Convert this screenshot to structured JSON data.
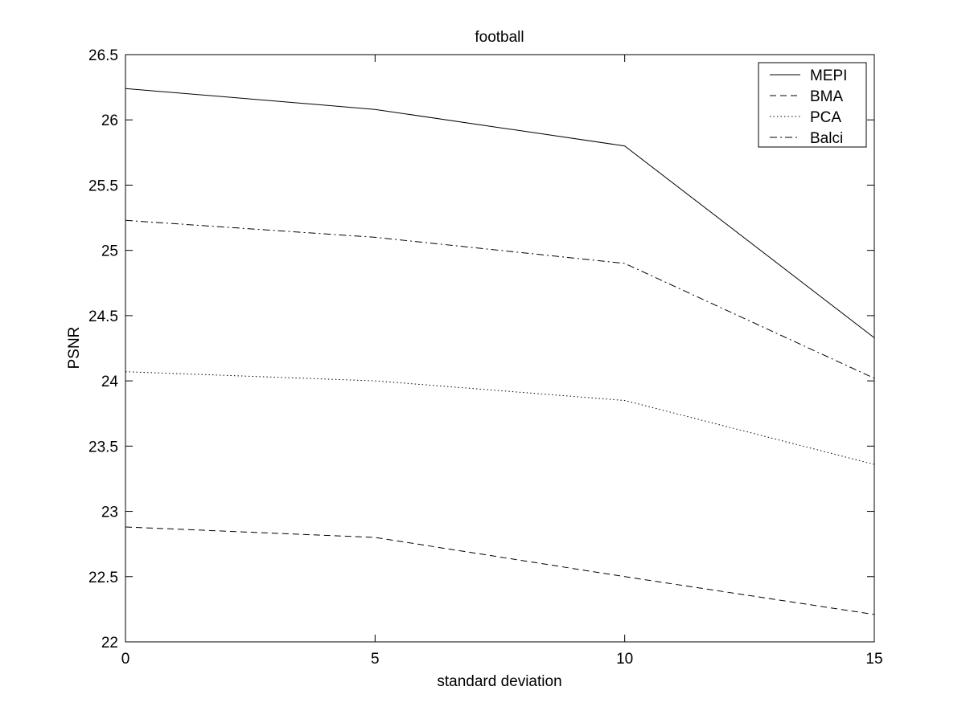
{
  "chart_data": {
    "type": "line",
    "title": "football",
    "xlabel": "standard deviation",
    "ylabel": "PSNR",
    "x": [
      0,
      5,
      10,
      15
    ],
    "xlim": [
      0,
      15
    ],
    "ylim": [
      22,
      26.5
    ],
    "xticks": [
      0,
      5,
      10,
      15
    ],
    "yticks": [
      22,
      22.5,
      23,
      23.5,
      24,
      24.5,
      25,
      25.5,
      26,
      26.5
    ],
    "grid": false,
    "legend_position": "top-right",
    "series": [
      {
        "name": "MEPI",
        "style": "solid",
        "color": "#000000",
        "values": [
          26.24,
          26.08,
          25.8,
          24.33
        ]
      },
      {
        "name": "BMA",
        "style": "dashed",
        "color": "#000000",
        "values": [
          22.88,
          22.8,
          22.5,
          22.21
        ]
      },
      {
        "name": "PCA",
        "style": "dotted",
        "color": "#000000",
        "values": [
          24.07,
          24.0,
          23.85,
          23.36
        ]
      },
      {
        "name": "Balci",
        "style": "dashdot",
        "color": "#000000",
        "values": [
          25.23,
          25.1,
          24.9,
          24.02
        ]
      }
    ]
  }
}
